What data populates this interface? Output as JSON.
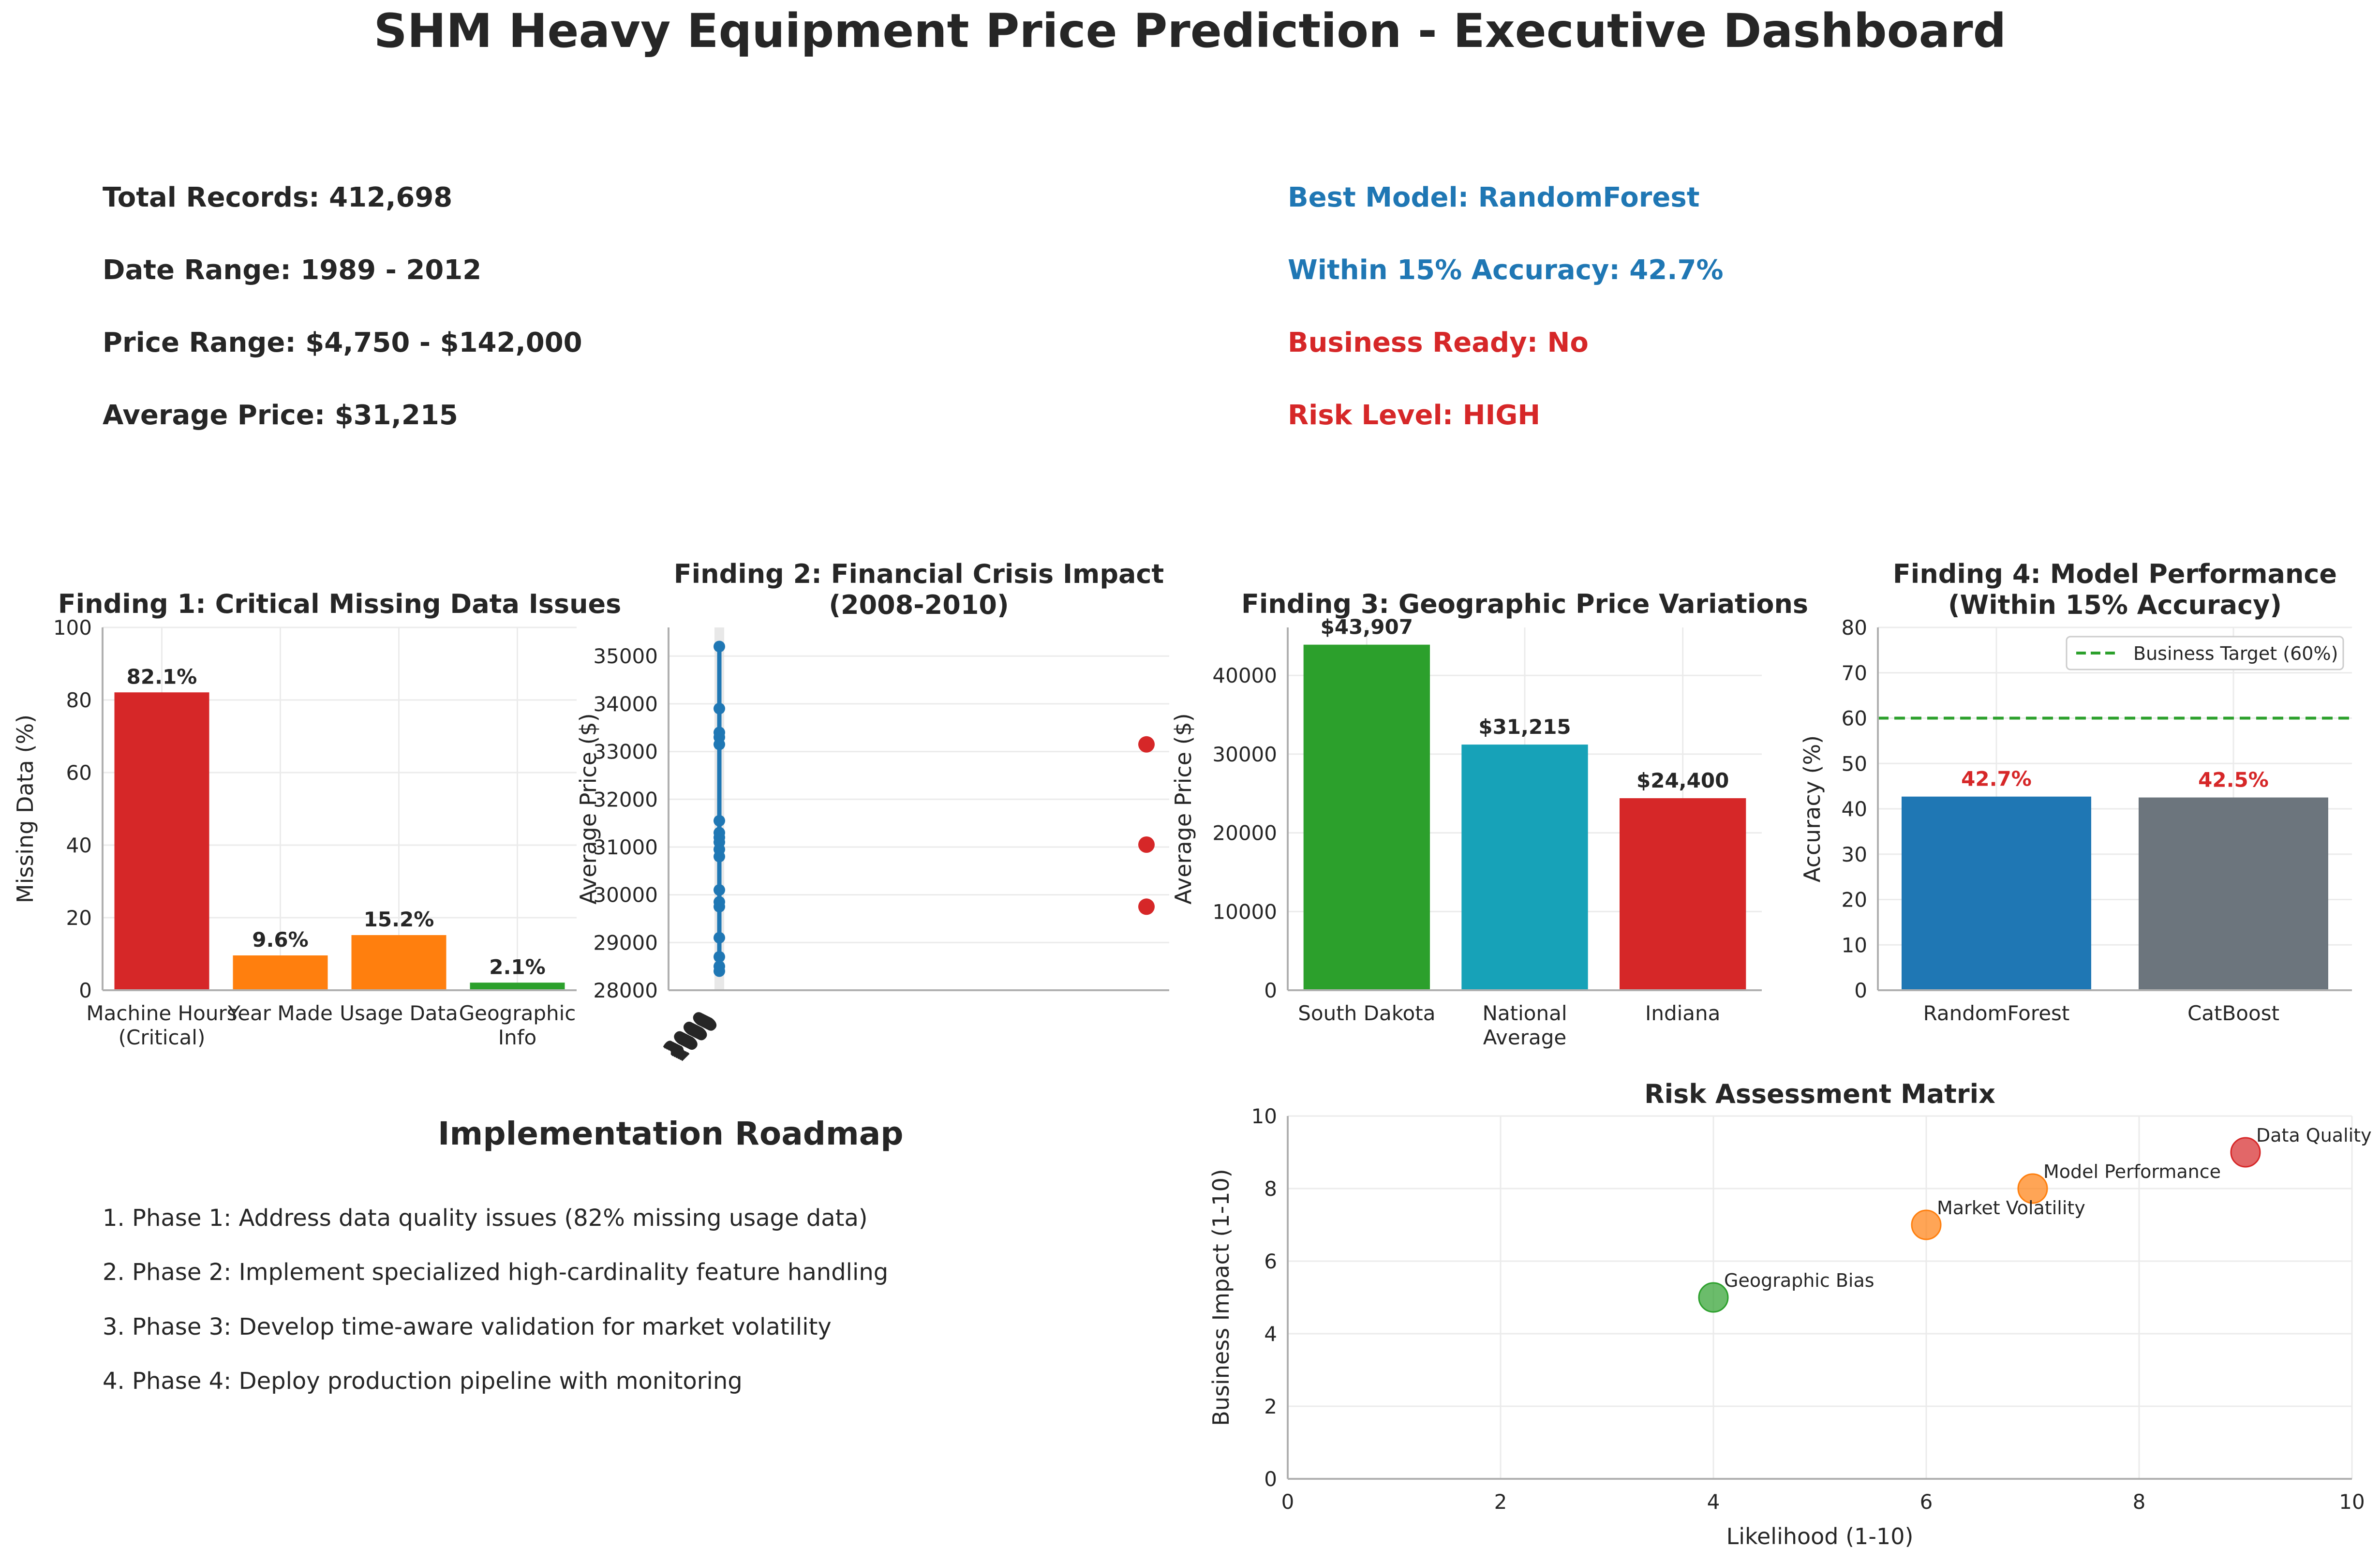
{
  "title": "SHM Heavy Equipment Price Prediction - Executive Dashboard",
  "kpis_left": [
    {
      "label": "Total Records: 412,698"
    },
    {
      "label": "Date Range: 1989 - 2012"
    },
    {
      "label": "Price Range: $4,750 - $142,000"
    },
    {
      "label": "Average Price: $31,215"
    }
  ],
  "kpis_right": [
    {
      "label": "Best Model: RandomForest",
      "color": "#1f77b4"
    },
    {
      "label": "Within 15% Accuracy: 42.7%",
      "color": "#1f77b4"
    },
    {
      "label": "Business Ready: No",
      "color": "#d62728"
    },
    {
      "label": "Risk Level: HIGH",
      "color": "#d62728"
    }
  ],
  "roadmap": {
    "title": "Implementation Roadmap",
    "items": [
      "1. Phase 1: Address data quality issues (82% missing usage data)",
      "2. Phase 2: Implement specialized high-cardinality feature handling",
      "3. Phase 3: Develop time-aware validation for market volatility",
      "4. Phase 4: Deploy production pipeline with monitoring"
    ]
  },
  "chart_data": [
    {
      "id": "finding1",
      "type": "bar",
      "title": "Finding 1: Critical Missing Data Issues",
      "xlabel": "",
      "ylabel": "Missing Data (%)",
      "categories": [
        "Machine Hours\n(Critical)",
        "Year Made",
        "Usage Data",
        "Geographic\nInfo"
      ],
      "values": [
        82.1,
        9.6,
        15.2,
        2.1
      ],
      "value_labels": [
        "82.1%",
        "9.6%",
        "15.2%",
        "2.1%"
      ],
      "colors": [
        "#d62728",
        "#ff7f0e",
        "#ff7f0e",
        "#2ca02c"
      ],
      "ylim": [
        0,
        100
      ],
      "yticks": [
        0,
        20,
        40,
        60,
        80,
        100
      ],
      "grid": true
    },
    {
      "id": "finding2",
      "type": "line",
      "title": "Finding 2: Financial Crisis Impact\n(2008-2010)",
      "xlabel": "",
      "ylabel": "Average Price ($)",
      "ylim": [
        28000,
        35600
      ],
      "yticks": [
        28000,
        29000,
        30000,
        31000,
        32000,
        33000,
        34000,
        35000
      ],
      "line_values": [
        35200,
        33900,
        33400,
        33300,
        33150,
        31550,
        31300,
        31200,
        31100,
        30950,
        30800,
        30100,
        29850,
        29750,
        29100,
        28700,
        28500,
        28400
      ],
      "line_color": "#1f77b4",
      "crisis_points": [
        33150,
        31050,
        29750
      ],
      "crisis_color": "#d62728",
      "grid": true
    },
    {
      "id": "finding3",
      "type": "bar",
      "title": "Finding 3: Geographic Price Variations",
      "xlabel": "",
      "ylabel": "Average Price ($)",
      "categories": [
        "South Dakota",
        "National\nAverage",
        "Indiana"
      ],
      "values": [
        43907,
        31215,
        24400
      ],
      "value_labels": [
        "$43,907",
        "$31,215",
        "$24,400"
      ],
      "colors": [
        "#2ca02c",
        "#17a2b8",
        "#d62728"
      ],
      "ylim": [
        0,
        46100
      ],
      "yticks": [
        0,
        10000,
        20000,
        30000,
        40000
      ],
      "grid": true
    },
    {
      "id": "finding4",
      "type": "bar",
      "title": "Finding 4: Model Performance\n(Within 15% Accuracy)",
      "xlabel": "",
      "ylabel": "Accuracy (%)",
      "categories": [
        "RandomForest",
        "CatBoost"
      ],
      "values": [
        42.7,
        42.5
      ],
      "value_labels": [
        "42.7%",
        "42.5%"
      ],
      "value_label_color": "#d62728",
      "colors": [
        "#1f77b4",
        "#6c757d"
      ],
      "ylim": [
        0,
        80
      ],
      "yticks": [
        0,
        10,
        20,
        30,
        40,
        50,
        60,
        70,
        80
      ],
      "target": {
        "value": 60,
        "label": "Business Target (60%)",
        "color": "#2ca02c"
      },
      "legend": "top-right",
      "grid": true
    },
    {
      "id": "risk",
      "type": "scatter",
      "title": "Risk Assessment Matrix",
      "xlabel": "Likelihood (1-10)",
      "ylabel": "Business Impact (1-10)",
      "xlim": [
        0,
        10
      ],
      "ylim": [
        0,
        10
      ],
      "xticks": [
        0,
        2,
        4,
        6,
        8,
        10
      ],
      "yticks": [
        0,
        2,
        4,
        6,
        8,
        10
      ],
      "points": [
        {
          "label": "Data Quality",
          "x": 9,
          "y": 9,
          "color": "#d62728"
        },
        {
          "label": "Model Performance",
          "x": 7,
          "y": 8,
          "color": "#ff7f0e"
        },
        {
          "label": "Market Volatility",
          "x": 6,
          "y": 7,
          "color": "#ff7f0e"
        },
        {
          "label": "Geographic Bias",
          "x": 4,
          "y": 5,
          "color": "#2ca02c"
        }
      ],
      "grid": true
    }
  ]
}
